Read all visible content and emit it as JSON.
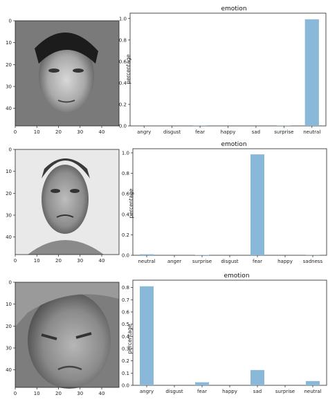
{
  "images": [
    {
      "xticks": [
        "0",
        "10",
        "20",
        "30",
        "40"
      ],
      "yticks": [
        "0",
        "10",
        "20",
        "30",
        "40"
      ],
      "xlim": [
        0,
        48
      ],
      "ylim": [
        0,
        48
      ]
    },
    {
      "xticks": [
        "0",
        "10",
        "20",
        "30",
        "40"
      ],
      "yticks": [
        "0",
        "10",
        "20",
        "30",
        "40"
      ],
      "xlim": [
        0,
        48
      ],
      "ylim": [
        0,
        48
      ]
    },
    {
      "xticks": [
        "0",
        "10",
        "20",
        "30",
        "40"
      ],
      "yticks": [
        "0",
        "10",
        "20",
        "30",
        "40"
      ],
      "xlim": [
        0,
        48
      ],
      "ylim": [
        0,
        48
      ]
    }
  ],
  "colors": {
    "bar": "#8ab8d8",
    "bar_edge": "#6f9fc2"
  },
  "chart_data": [
    {
      "type": "bar",
      "title": "emotion",
      "ylabel": "percentage",
      "xlabel": "",
      "categories": [
        "angry",
        "disgust",
        "fear",
        "happy",
        "sad",
        "surprise",
        "neutral"
      ],
      "values": [
        0.0,
        0.0,
        0.005,
        0.0,
        0.0,
        0.002,
        0.993
      ],
      "ylim": [
        0,
        1.05
      ],
      "yticks": [
        "0.0",
        "0.2",
        "0.4",
        "0.6",
        "0.8",
        "1.0"
      ],
      "ytick_values": [
        0,
        0.2,
        0.4,
        0.6,
        0.8,
        1.0
      ],
      "grid": false
    },
    {
      "type": "bar",
      "title": "emotion",
      "ylabel": "percentage",
      "xlabel": "",
      "categories": [
        "neutral",
        "anger",
        "surprise",
        "disgust",
        "fear",
        "happy",
        "sadness"
      ],
      "values": [
        0.01,
        0.0,
        0.003,
        0.0,
        0.985,
        0.0,
        0.002
      ],
      "ylim": [
        0,
        1.04
      ],
      "yticks": [
        "0.0",
        "0.2",
        "0.4",
        "0.6",
        "0.8",
        "1.0"
      ],
      "ytick_values": [
        0,
        0.2,
        0.4,
        0.6,
        0.8,
        1.0
      ],
      "grid": false
    },
    {
      "type": "bar",
      "title": "emotion",
      "ylabel": "percentage",
      "xlabel": "",
      "categories": [
        "angry",
        "disgust",
        "fear",
        "happy",
        "sad",
        "surprise",
        "neutral"
      ],
      "values": [
        0.81,
        0.0,
        0.025,
        0.0,
        0.125,
        0.0,
        0.035
      ],
      "ylim": [
        0,
        0.86
      ],
      "yticks": [
        "0.0",
        "0.1",
        "0.2",
        "0.3",
        "0.4",
        "0.5",
        "0.6",
        "0.7",
        "0.8"
      ],
      "ytick_values": [
        0,
        0.1,
        0.2,
        0.3,
        0.4,
        0.5,
        0.6,
        0.7,
        0.8
      ],
      "grid": false
    }
  ]
}
